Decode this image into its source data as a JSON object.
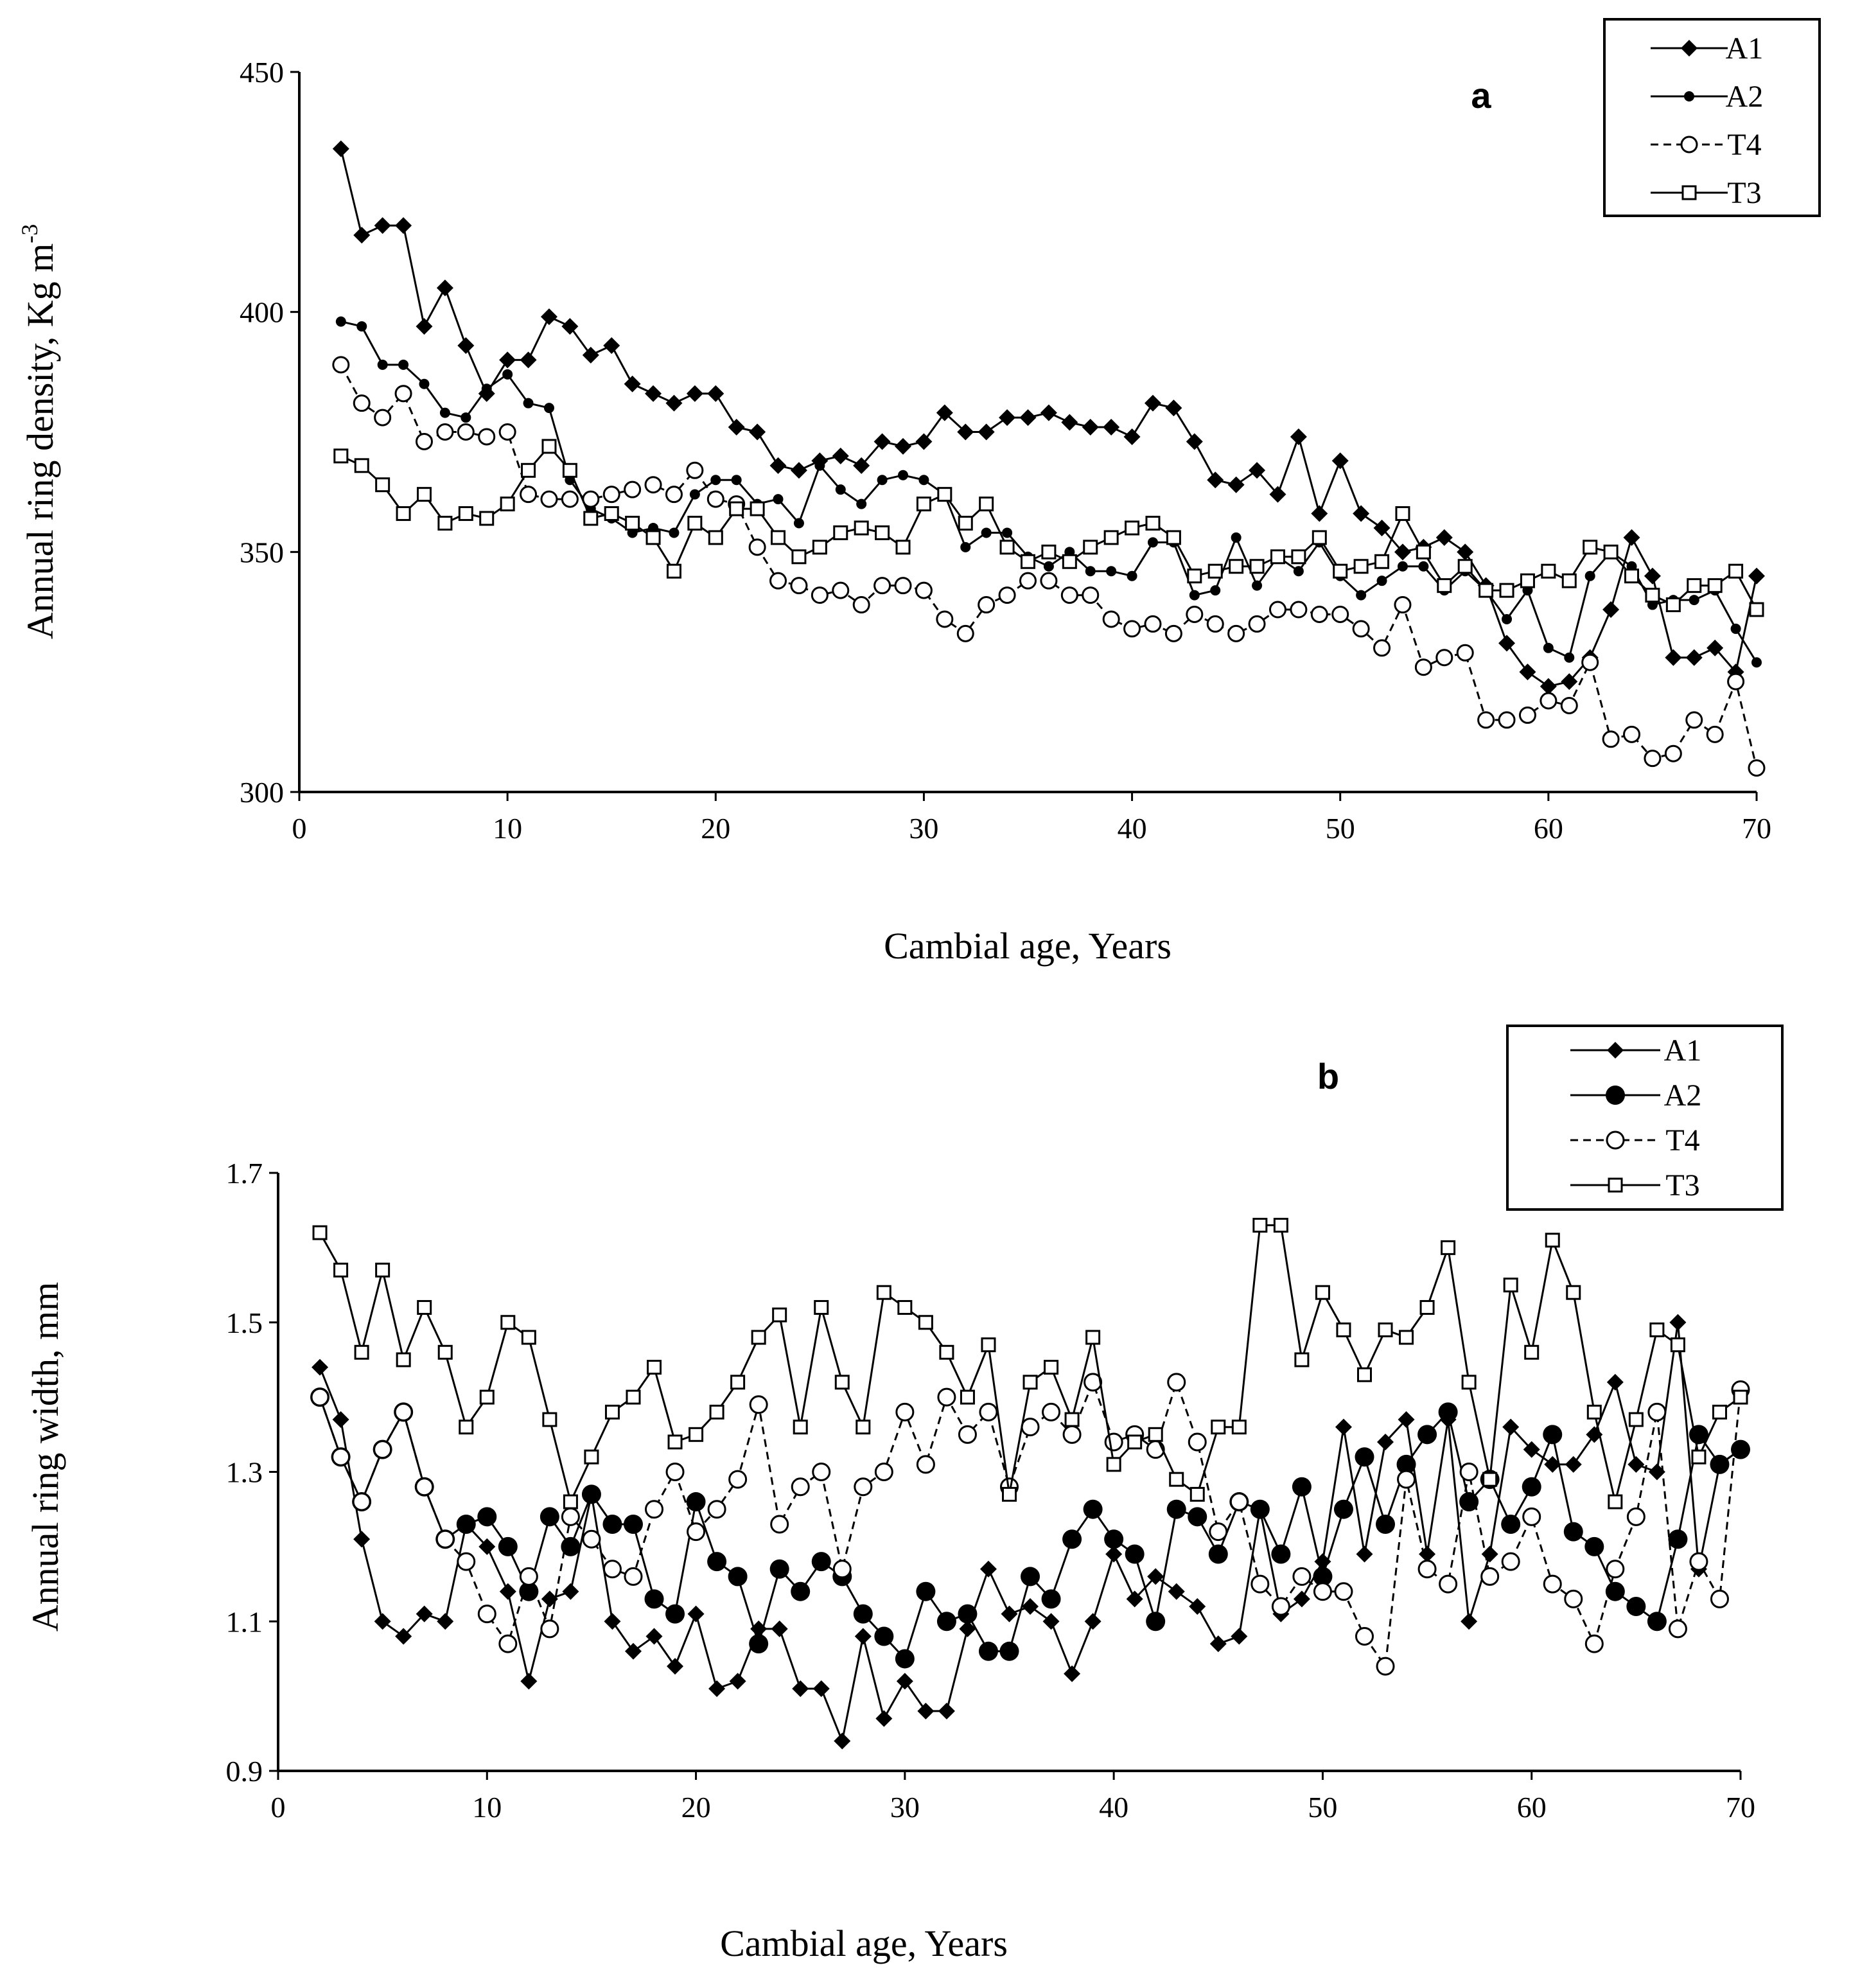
{
  "chart_data": [
    {
      "type": "line",
      "panel": "a",
      "title": "",
      "xlabel": "Cambial age, Years",
      "ylabel": "Annual ring density, Kg m",
      "ylabel_sup": "-3",
      "xlim": [
        0,
        70
      ],
      "ylim": [
        300,
        450
      ],
      "xticks": [
        0,
        10,
        20,
        30,
        40,
        50,
        60,
        70
      ],
      "yticks": [
        300,
        350,
        400,
        450
      ],
      "grid": false,
      "legend_position": "top-right",
      "x": [
        2,
        3,
        4,
        5,
        6,
        7,
        8,
        9,
        10,
        11,
        12,
        13,
        14,
        15,
        16,
        17,
        18,
        19,
        20,
        21,
        22,
        23,
        24,
        25,
        26,
        27,
        28,
        29,
        30,
        31,
        32,
        33,
        34,
        35,
        36,
        37,
        38,
        39,
        40,
        41,
        42,
        43,
        44,
        45,
        46,
        47,
        48,
        49,
        50,
        51,
        52,
        53,
        54,
        55,
        56,
        57,
        58,
        59,
        60,
        61,
        62,
        63,
        64,
        65,
        66,
        67,
        68,
        69,
        70
      ],
      "series": [
        {
          "name": "A1",
          "marker": "diamond",
          "dashed": false,
          "values": [
            434,
            416,
            418,
            418,
            397,
            405,
            393,
            383,
            390,
            390,
            399,
            397,
            391,
            393,
            385,
            383,
            381,
            383,
            383,
            376,
            375,
            368,
            367,
            369,
            370,
            368,
            373,
            372,
            373,
            379,
            375,
            375,
            378,
            378,
            379,
            377,
            376,
            376,
            374,
            381,
            380,
            373,
            365,
            364,
            367,
            362,
            374,
            358,
            369,
            358,
            355,
            350,
            351,
            353,
            350,
            343,
            331,
            325,
            322,
            323,
            328,
            338,
            353,
            345,
            328,
            328,
            330,
            325,
            345
          ]
        },
        {
          "name": "A2",
          "marker": "dot",
          "dashed": false,
          "values": [
            398,
            397,
            389,
            389,
            385,
            379,
            378,
            384,
            387,
            381,
            380,
            365,
            359,
            357,
            354,
            355,
            354,
            362,
            365,
            365,
            360,
            361,
            356,
            368,
            363,
            360,
            365,
            366,
            365,
            362,
            351,
            354,
            354,
            349,
            347,
            350,
            346,
            346,
            345,
            352,
            352,
            341,
            342,
            353,
            343,
            349,
            346,
            352,
            345,
            341,
            344,
            347,
            347,
            342,
            346,
            342,
            336,
            342,
            330,
            328,
            345,
            350,
            347,
            339,
            340,
            340,
            342,
            334,
            327
          ]
        },
        {
          "name": "T4",
          "marker": "circle-open",
          "dashed": true,
          "values": [
            389,
            381,
            378,
            383,
            373,
            375,
            375,
            374,
            375,
            362,
            361,
            361,
            361,
            362,
            363,
            364,
            362,
            367,
            361,
            360,
            351,
            344,
            343,
            341,
            342,
            339,
            343,
            343,
            342,
            336,
            333,
            339,
            341,
            344,
            344,
            341,
            341,
            336,
            334,
            335,
            333,
            337,
            335,
            333,
            335,
            338,
            338,
            337,
            337,
            334,
            330,
            339,
            326,
            328,
            329,
            315,
            315,
            316,
            319,
            318,
            327,
            311,
            312,
            307,
            308,
            315,
            312,
            323,
            305
          ]
        },
        {
          "name": "T3",
          "marker": "square-open",
          "dashed": false,
          "values": [
            370,
            368,
            364,
            358,
            362,
            356,
            358,
            357,
            360,
            367,
            372,
            367,
            357,
            358,
            356,
            353,
            346,
            356,
            353,
            359,
            359,
            353,
            349,
            351,
            354,
            355,
            354,
            351,
            360,
            362,
            356,
            360,
            351,
            348,
            350,
            348,
            351,
            353,
            355,
            356,
            353,
            345,
            346,
            347,
            347,
            349,
            349,
            353,
            346,
            347,
            348,
            358,
            350,
            343,
            347,
            342,
            342,
            344,
            346,
            344,
            351,
            350,
            345,
            341,
            339,
            343,
            343,
            346,
            338
          ]
        }
      ]
    },
    {
      "type": "line",
      "panel": "b",
      "title": "",
      "xlabel": "Cambial age, Years",
      "ylabel": "Annual ring width, mm",
      "xlim": [
        0,
        70
      ],
      "ylim": [
        0.9,
        1.7
      ],
      "xticks": [
        0,
        10,
        20,
        30,
        40,
        50,
        60,
        70
      ],
      "yticks": [
        0.9,
        1.1,
        1.3,
        1.5,
        1.7
      ],
      "ytick_labels": [
        "0.9",
        "1.1",
        "1.3",
        "1.5",
        "1.7"
      ],
      "grid": false,
      "legend_position": "top-right",
      "x": [
        2,
        3,
        4,
        5,
        6,
        7,
        8,
        9,
        10,
        11,
        12,
        13,
        14,
        15,
        16,
        17,
        18,
        19,
        20,
        21,
        22,
        23,
        24,
        25,
        26,
        27,
        28,
        29,
        30,
        31,
        32,
        33,
        34,
        35,
        36,
        37,
        38,
        39,
        40,
        41,
        42,
        43,
        44,
        45,
        46,
        47,
        48,
        49,
        50,
        51,
        52,
        53,
        54,
        55,
        56,
        57,
        58,
        59,
        60,
        61,
        62,
        63,
        64,
        65,
        66,
        67,
        68,
        69,
        70
      ],
      "series": [
        {
          "name": "A1",
          "marker": "diamond",
          "dashed": false,
          "values": [
            1.44,
            1.37,
            1.21,
            1.1,
            1.08,
            1.11,
            1.1,
            1.23,
            1.2,
            1.14,
            1.02,
            1.13,
            1.14,
            1.27,
            1.1,
            1.06,
            1.08,
            1.04,
            1.11,
            1.01,
            1.02,
            1.09,
            1.09,
            1.01,
            1.01,
            0.94,
            1.08,
            0.97,
            1.02,
            0.98,
            0.98,
            1.09,
            1.17,
            1.11,
            1.12,
            1.1,
            1.03,
            1.1,
            1.19,
            1.13,
            1.16,
            1.14,
            1.12,
            1.07,
            1.08,
            1.25,
            1.11,
            1.13,
            1.18,
            1.36,
            1.19,
            1.34,
            1.37,
            1.19,
            1.37,
            1.1,
            1.19,
            1.36,
            1.33,
            1.31,
            1.31,
            1.35,
            1.42,
            1.31,
            1.3,
            1.5,
            1.17,
            1.31,
            1.33
          ]
        },
        {
          "name": "A2",
          "marker": "dot-large",
          "dashed": false,
          "values": [
            1.4,
            1.32,
            1.26,
            1.33,
            1.38,
            1.28,
            1.21,
            1.23,
            1.24,
            1.2,
            1.14,
            1.24,
            1.2,
            1.27,
            1.23,
            1.23,
            1.13,
            1.11,
            1.26,
            1.18,
            1.16,
            1.07,
            1.17,
            1.14,
            1.18,
            1.16,
            1.11,
            1.08,
            1.05,
            1.14,
            1.1,
            1.11,
            1.06,
            1.06,
            1.16,
            1.13,
            1.21,
            1.25,
            1.21,
            1.19,
            1.1,
            1.25,
            1.24,
            1.19,
            1.26,
            1.25,
            1.19,
            1.28,
            1.16,
            1.25,
            1.32,
            1.23,
            1.31,
            1.35,
            1.38,
            1.26,
            1.29,
            1.23,
            1.28,
            1.35,
            1.22,
            1.2,
            1.14,
            1.12,
            1.1,
            1.21,
            1.35,
            1.31,
            1.33
          ]
        },
        {
          "name": "T4",
          "marker": "circle-open",
          "dashed": true,
          "values": [
            1.4,
            1.32,
            1.26,
            1.33,
            1.38,
            1.28,
            1.21,
            1.18,
            1.11,
            1.07,
            1.16,
            1.09,
            1.24,
            1.21,
            1.17,
            1.16,
            1.25,
            1.3,
            1.22,
            1.25,
            1.29,
            1.39,
            1.23,
            1.28,
            1.3,
            1.17,
            1.28,
            1.3,
            1.38,
            1.31,
            1.4,
            1.35,
            1.38,
            1.28,
            1.36,
            1.38,
            1.35,
            1.42,
            1.34,
            1.35,
            1.33,
            1.42,
            1.34,
            1.22,
            1.26,
            1.15,
            1.12,
            1.16,
            1.14,
            1.14,
            1.08,
            1.04,
            1.29,
            1.17,
            1.15,
            1.3,
            1.16,
            1.18,
            1.24,
            1.15,
            1.13,
            1.07,
            1.17,
            1.24,
            1.38,
            1.09,
            1.18,
            1.13,
            1.41
          ]
        },
        {
          "name": "T3",
          "marker": "square-open",
          "dashed": false,
          "values": [
            1.62,
            1.57,
            1.46,
            1.57,
            1.45,
            1.52,
            1.46,
            1.36,
            1.4,
            1.5,
            1.48,
            1.37,
            1.26,
            1.32,
            1.38,
            1.4,
            1.44,
            1.34,
            1.35,
            1.38,
            1.42,
            1.48,
            1.51,
            1.36,
            1.52,
            1.42,
            1.36,
            1.54,
            1.52,
            1.5,
            1.46,
            1.4,
            1.47,
            1.27,
            1.42,
            1.44,
            1.37,
            1.48,
            1.31,
            1.34,
            1.35,
            1.29,
            1.27,
            1.36,
            1.36,
            1.63,
            1.63,
            1.45,
            1.54,
            1.49,
            1.43,
            1.49,
            1.48,
            1.52,
            1.6,
            1.42,
            1.29,
            1.55,
            1.46,
            1.61,
            1.54,
            1.38,
            1.26,
            1.37,
            1.49,
            1.47,
            1.32,
            1.38,
            1.4
          ]
        }
      ]
    }
  ]
}
